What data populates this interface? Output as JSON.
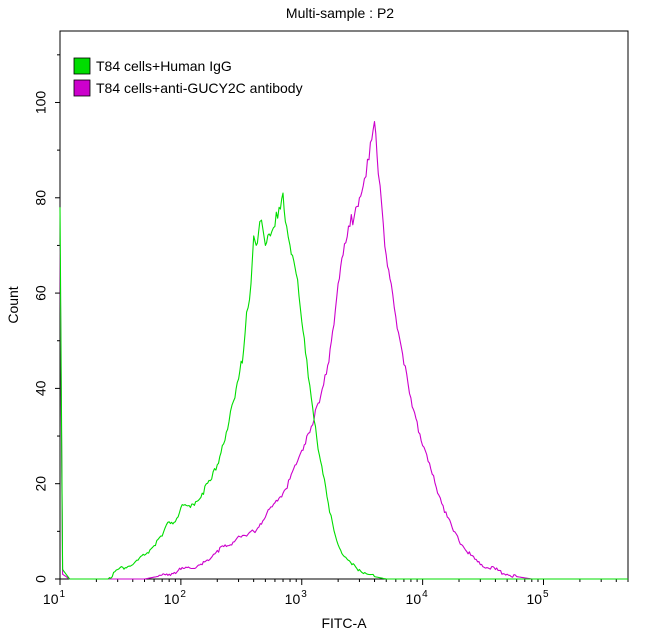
{
  "chart_data": {
    "type": "line",
    "title": "Multi-sample : P2",
    "xlabel": "FITC-A",
    "ylabel": "Count",
    "x_scale": "log",
    "xlim": [
      10,
      500000
    ],
    "ylim": [
      0,
      115
    ],
    "x_ticks": [
      {
        "value": 10,
        "base": "10",
        "exp": "1"
      },
      {
        "value": 100,
        "base": "10",
        "exp": "2"
      },
      {
        "value": 1000,
        "base": "10",
        "exp": "3"
      },
      {
        "value": 10000,
        "base": "10",
        "exp": "4"
      },
      {
        "value": 100000,
        "base": "10",
        "exp": "5"
      }
    ],
    "y_ticks": [
      "0",
      "20",
      "40",
      "60",
      "80",
      "100"
    ],
    "y_tick_values": [
      0,
      20,
      40,
      60,
      80,
      100
    ],
    "legend_position": "top-left",
    "grid": false,
    "series": [
      {
        "name": "T84 cells+Human IgG",
        "color": "#00dd00",
        "points": [
          [
            10,
            78
          ],
          [
            10.5,
            2
          ],
          [
            12,
            0
          ],
          [
            20,
            0
          ],
          [
            25,
            0
          ],
          [
            30,
            2
          ],
          [
            40,
            3
          ],
          [
            50,
            5
          ],
          [
            60,
            7
          ],
          [
            70,
            9
          ],
          [
            80,
            12
          ],
          [
            90,
            12
          ],
          [
            100,
            15
          ],
          [
            120,
            15
          ],
          [
            150,
            18
          ],
          [
            180,
            21
          ],
          [
            200,
            24
          ],
          [
            220,
            28
          ],
          [
            250,
            33
          ],
          [
            280,
            38
          ],
          [
            300,
            42
          ],
          [
            330,
            48
          ],
          [
            350,
            56
          ],
          [
            380,
            62
          ],
          [
            400,
            72
          ],
          [
            420,
            70
          ],
          [
            450,
            75
          ],
          [
            480,
            73
          ],
          [
            500,
            70
          ],
          [
            550,
            72
          ],
          [
            600,
            74
          ],
          [
            650,
            78
          ],
          [
            700,
            81
          ],
          [
            750,
            74
          ],
          [
            800,
            70
          ],
          [
            900,
            64
          ],
          [
            1000,
            54
          ],
          [
            1100,
            46
          ],
          [
            1200,
            38
          ],
          [
            1300,
            32
          ],
          [
            1400,
            26
          ],
          [
            1500,
            22
          ],
          [
            1700,
            14
          ],
          [
            1900,
            9
          ],
          [
            2200,
            5
          ],
          [
            2600,
            3
          ],
          [
            3000,
            2
          ],
          [
            3500,
            1
          ],
          [
            4000,
            0.5
          ],
          [
            5000,
            0
          ],
          [
            10000,
            0
          ],
          [
            500000,
            0
          ]
        ]
      },
      {
        "name": "T84 cells+anti-GUCY2C antibody",
        "color": "#cc00cc",
        "points": [
          [
            10,
            70
          ],
          [
            10.5,
            1
          ],
          [
            12,
            0
          ],
          [
            20,
            0
          ],
          [
            50,
            0
          ],
          [
            80,
            1
          ],
          [
            100,
            2
          ],
          [
            150,
            3
          ],
          [
            200,
            6
          ],
          [
            250,
            7
          ],
          [
            300,
            9
          ],
          [
            350,
            9
          ],
          [
            400,
            10
          ],
          [
            500,
            13
          ],
          [
            600,
            16
          ],
          [
            700,
            18
          ],
          [
            800,
            21
          ],
          [
            900,
            24
          ],
          [
            1000,
            27
          ],
          [
            1100,
            30
          ],
          [
            1200,
            32
          ],
          [
            1400,
            37
          ],
          [
            1600,
            43
          ],
          [
            1800,
            52
          ],
          [
            2000,
            62
          ],
          [
            2200,
            68
          ],
          [
            2500,
            74
          ],
          [
            2800,
            78
          ],
          [
            3000,
            80
          ],
          [
            3300,
            84
          ],
          [
            3600,
            88
          ],
          [
            4000,
            96
          ],
          [
            4300,
            85
          ],
          [
            4600,
            78
          ],
          [
            5000,
            68
          ],
          [
            5500,
            62
          ],
          [
            6000,
            55
          ],
          [
            7000,
            45
          ],
          [
            8000,
            38
          ],
          [
            9000,
            33
          ],
          [
            10000,
            28
          ],
          [
            12000,
            22
          ],
          [
            14000,
            17
          ],
          [
            16000,
            13
          ],
          [
            18000,
            10
          ],
          [
            20000,
            8
          ],
          [
            25000,
            5
          ],
          [
            30000,
            3
          ],
          [
            40000,
            2
          ],
          [
            50000,
            1
          ],
          [
            60000,
            0.5
          ],
          [
            80000,
            0
          ],
          [
            200000,
            0
          ],
          [
            500000,
            0
          ]
        ]
      }
    ]
  }
}
